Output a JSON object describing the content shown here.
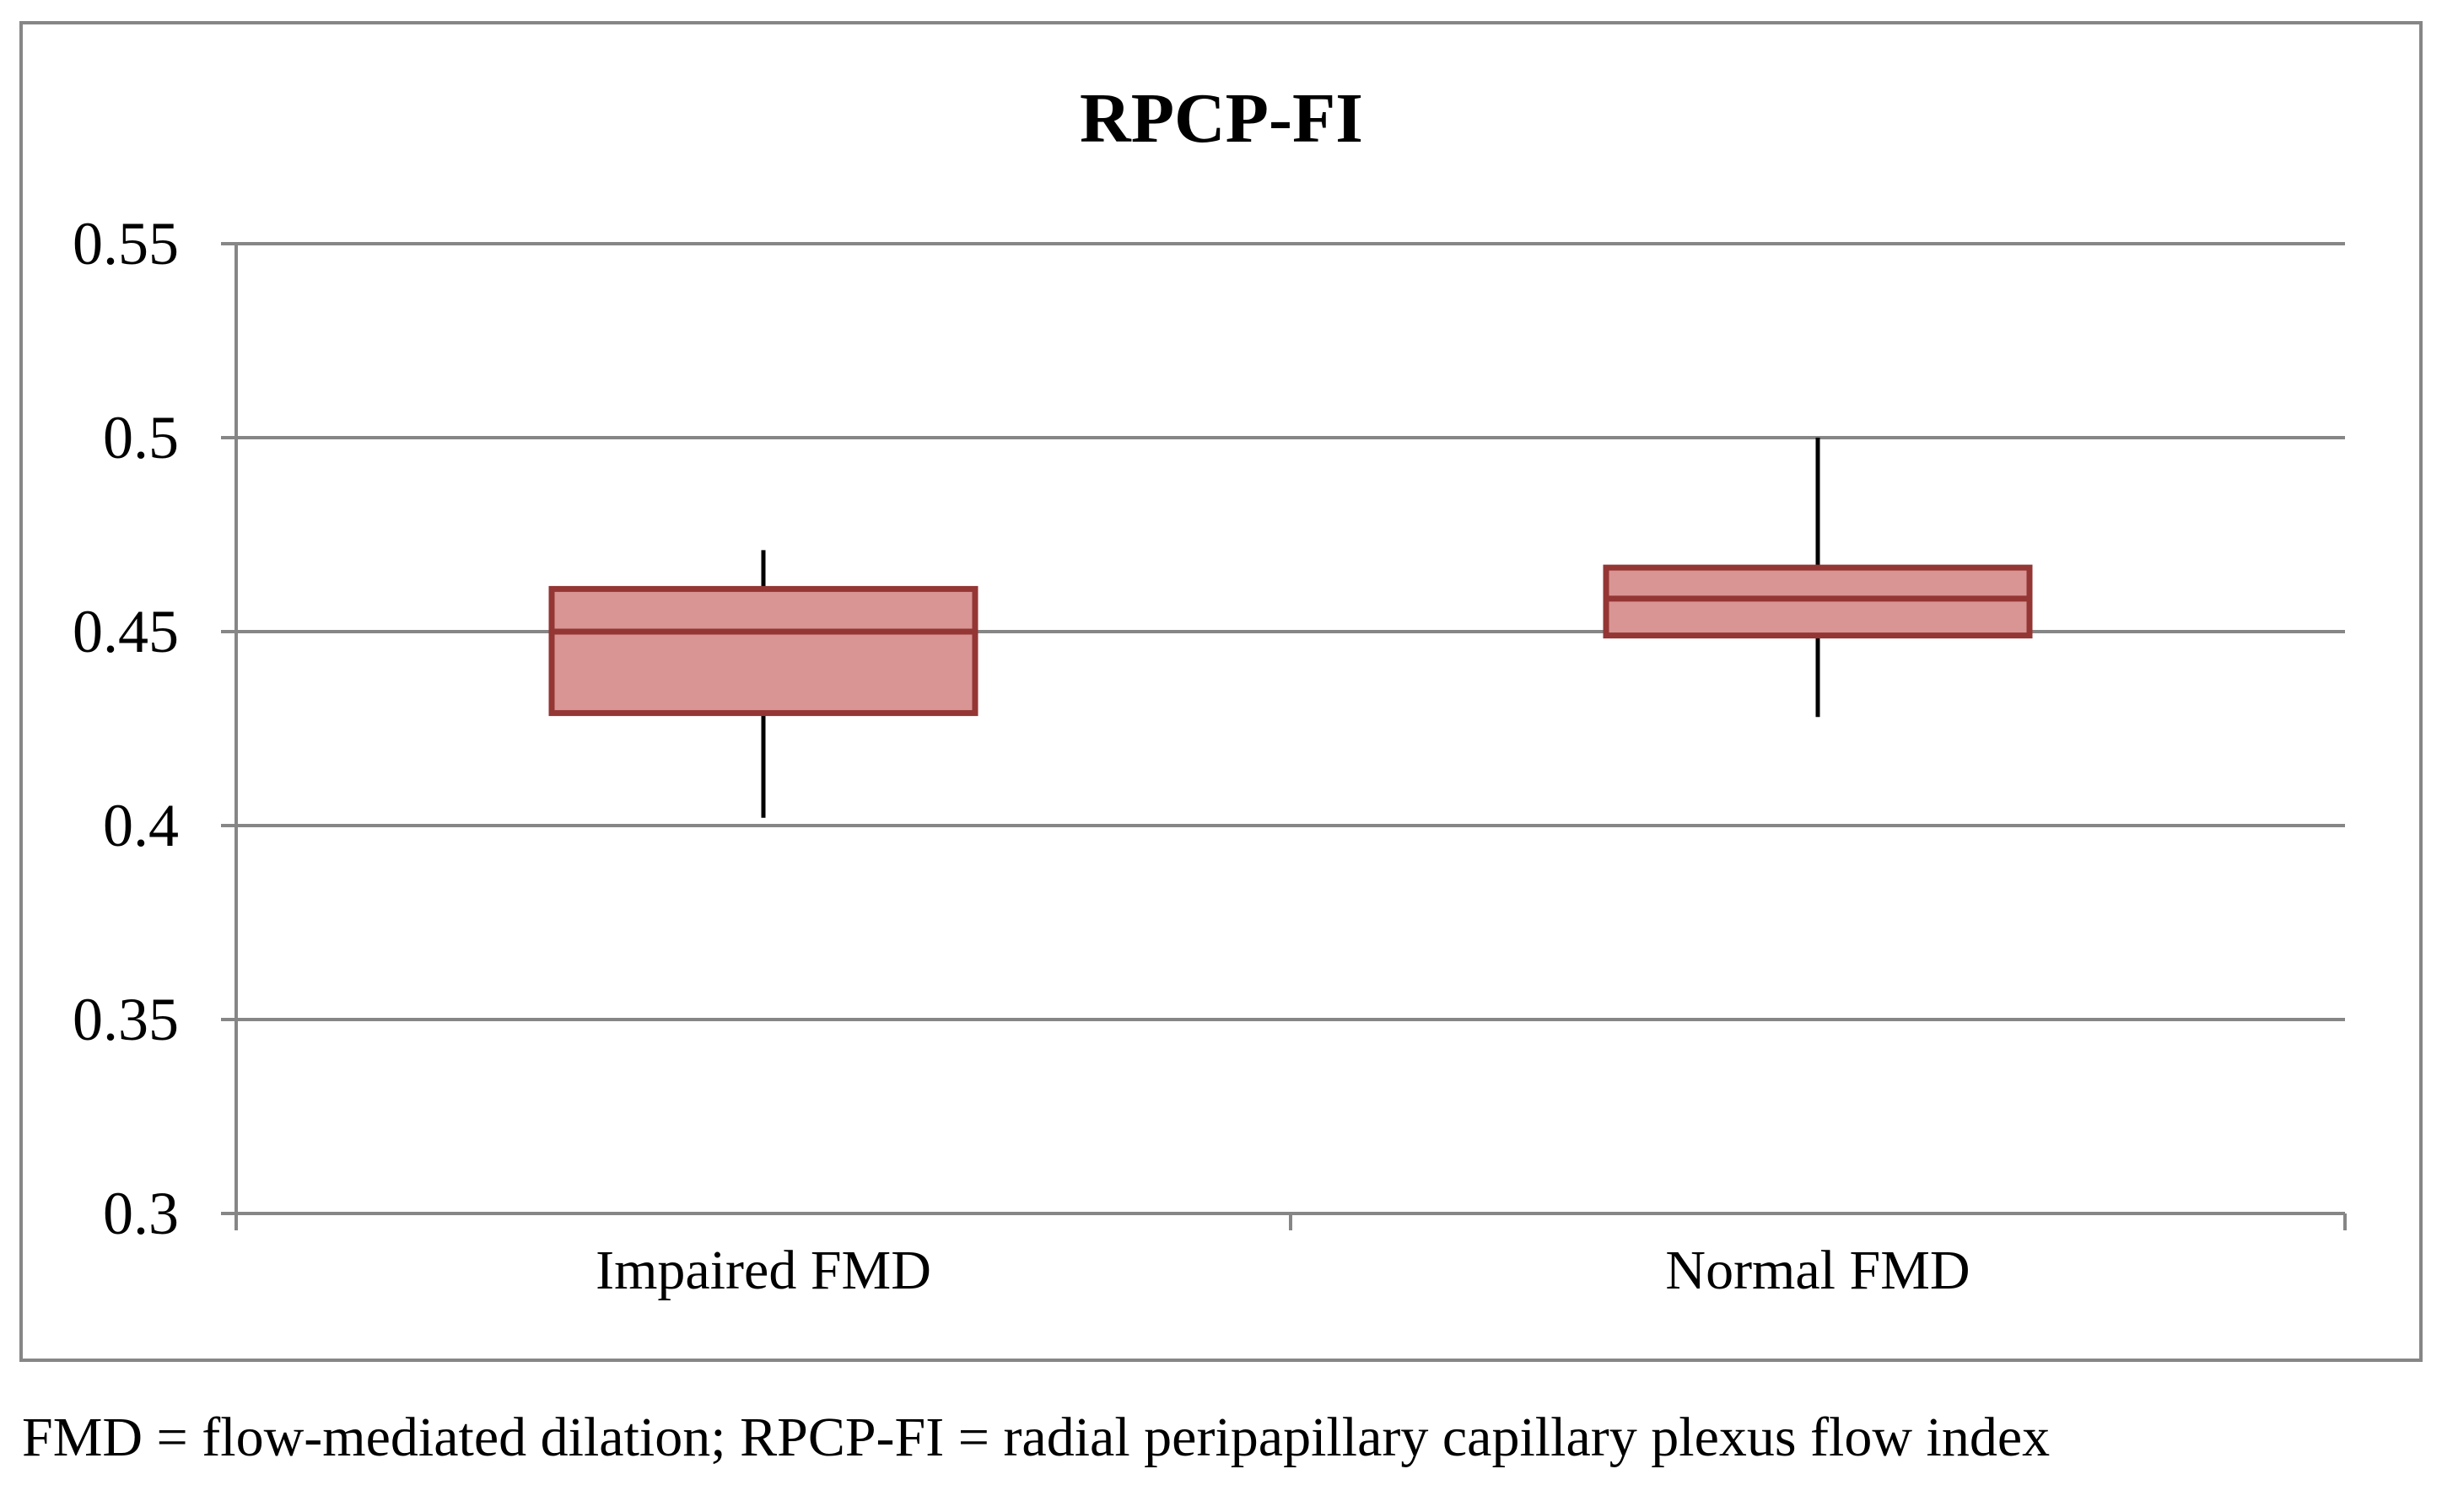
{
  "chart_data": {
    "type": "box",
    "title": "RPCP-FI",
    "xlabel": "",
    "ylabel": "",
    "ylim": [
      0.3,
      0.55
    ],
    "yticks": [
      0.3,
      0.35,
      0.4,
      0.45,
      0.5,
      0.55
    ],
    "ytick_labels": [
      "0.3",
      "0.35",
      "0.4",
      "0.45",
      "0.5",
      "0.55"
    ],
    "categories": [
      "Impaired FMD",
      "Normal FMD"
    ],
    "boxes": [
      {
        "category": "Impaired FMD",
        "min": 0.402,
        "q1": 0.429,
        "median": 0.45,
        "q3": 0.461,
        "max": 0.471
      },
      {
        "category": "Normal FMD",
        "min": 0.428,
        "q1": 0.449,
        "median": 0.4585,
        "q3": 0.4665,
        "max": 0.5
      }
    ],
    "grid": true,
    "colors": {
      "box_fill": "#d99594",
      "box_edge": "#943634",
      "whisker": "#000000",
      "grid": "#868686",
      "frame": "#868686"
    }
  },
  "caption": "FMD = flow-mediated dilation; RPCP-FI = radial peripapillary capillary plexus flow index"
}
